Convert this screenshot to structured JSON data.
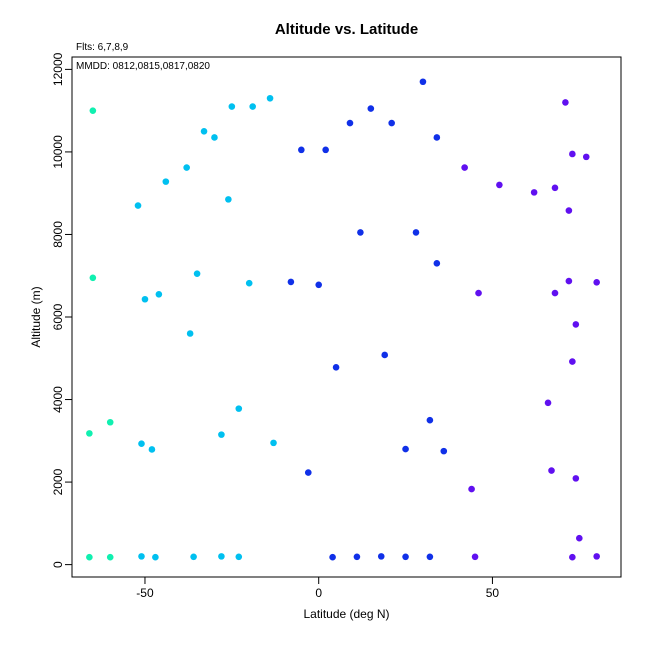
{
  "chart_data": {
    "type": "scatter",
    "title": "Altitude vs. Latitude",
    "xlabel": "Latitude (deg N)",
    "ylabel": "Altitude (m)",
    "xlim": [
      -71,
      87
    ],
    "ylim": [
      -300,
      12300
    ],
    "x_ticks": [
      -50,
      0,
      50
    ],
    "y_ticks": [
      0,
      2000,
      4000,
      6000,
      8000,
      10000,
      12000
    ],
    "grid": false,
    "legend": "none",
    "annotations": [
      "Flts: 6,7,8,9",
      "MMDD: 0812,0815,0817,0820"
    ],
    "series": [
      {
        "color": "#10f0b0",
        "points": [
          [
            -65,
            11000
          ],
          [
            -65,
            6950
          ],
          [
            -66,
            3180
          ],
          [
            -60,
            3450
          ],
          [
            -66,
            180
          ],
          [
            -60,
            180
          ]
        ]
      },
      {
        "color": "#00c0f0",
        "points": [
          [
            -14,
            11300
          ],
          [
            -19,
            11100
          ],
          [
            -25,
            11100
          ],
          [
            -33,
            10500
          ],
          [
            -30,
            10350
          ],
          [
            -38,
            9620
          ],
          [
            -44,
            9280
          ],
          [
            -26,
            8850
          ],
          [
            -52,
            8700
          ],
          [
            -35,
            7050
          ],
          [
            -20,
            6820
          ],
          [
            -46,
            6550
          ],
          [
            -50,
            6430
          ],
          [
            -37,
            5600
          ],
          [
            -23,
            3780
          ],
          [
            -13,
            2950
          ],
          [
            -28,
            3150
          ],
          [
            -51,
            2930
          ],
          [
            -48,
            2790
          ],
          [
            -51,
            200
          ],
          [
            -47,
            180
          ],
          [
            -36,
            190
          ],
          [
            -28,
            200
          ],
          [
            -23,
            190
          ]
        ]
      },
      {
        "color": "#1030e8",
        "points": [
          [
            30,
            11700
          ],
          [
            15,
            11050
          ],
          [
            9,
            10700
          ],
          [
            21,
            10700
          ],
          [
            34,
            10350
          ],
          [
            -5,
            10050
          ],
          [
            2,
            10050
          ],
          [
            12,
            8050
          ],
          [
            28,
            8050
          ],
          [
            34,
            7300
          ],
          [
            -8,
            6850
          ],
          [
            0,
            6780
          ],
          [
            19,
            5080
          ],
          [
            5,
            4780
          ],
          [
            32,
            3500
          ],
          [
            25,
            2800
          ],
          [
            36,
            2750
          ],
          [
            -3,
            2230
          ],
          [
            4,
            180
          ],
          [
            11,
            190
          ],
          [
            18,
            200
          ],
          [
            25,
            190
          ],
          [
            32,
            190
          ]
        ]
      },
      {
        "color": "#6010f0",
        "points": [
          [
            71,
            11200
          ],
          [
            73,
            9950
          ],
          [
            77,
            9880
          ],
          [
            42,
            9620
          ],
          [
            52,
            9200
          ],
          [
            68,
            9130
          ],
          [
            62,
            9020
          ],
          [
            72,
            8580
          ],
          [
            72,
            6870
          ],
          [
            80,
            6840
          ],
          [
            46,
            6580
          ],
          [
            68,
            6580
          ],
          [
            74,
            5820
          ],
          [
            73,
            4920
          ],
          [
            66,
            3920
          ],
          [
            67,
            2280
          ],
          [
            74,
            2090
          ],
          [
            44,
            1830
          ],
          [
            75,
            640
          ],
          [
            45,
            190
          ],
          [
            73,
            180
          ],
          [
            80,
            200
          ]
        ]
      }
    ]
  }
}
